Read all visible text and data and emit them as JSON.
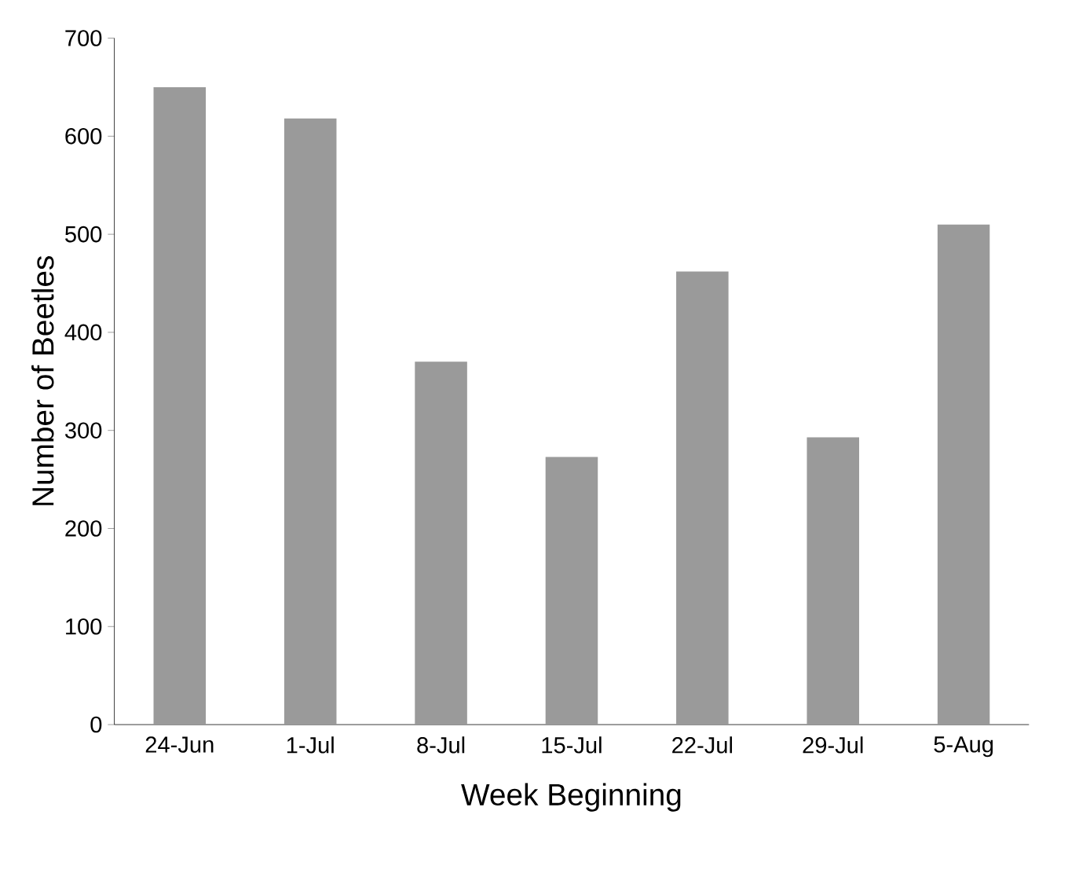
{
  "chart_data": {
    "type": "bar",
    "xlabel": "Week Beginning",
    "ylabel": "Number of Beetles",
    "categories": [
      "24-Jun",
      "1-Jul",
      "8-Jul",
      "15-Jul",
      "22-Jul",
      "29-Jul",
      "5-Aug"
    ],
    "values": [
      650,
      618,
      370,
      273,
      462,
      293,
      510
    ],
    "color": "#9a9a9a",
    "ylim": [
      0,
      700
    ],
    "yticks": [
      0,
      100,
      200,
      300,
      400,
      500,
      600,
      700
    ],
    "grid": false
  }
}
